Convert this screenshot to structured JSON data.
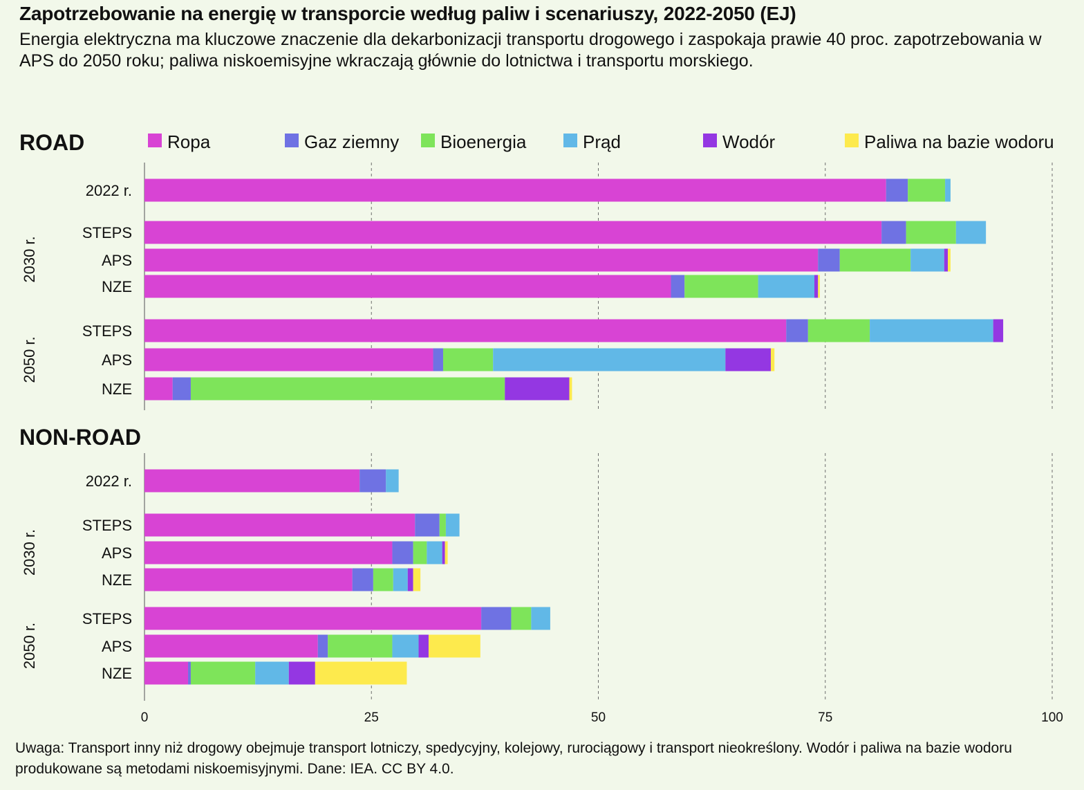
{
  "header": {
    "title": "Zapotrzebowanie na energię w transporcie według paliw i scenariuszy, 2022-2050 (EJ)",
    "subtitle": "Energia elektryczna ma kluczowe znaczenie dla dekarbonizacji transportu drogowego i zaspokaja prawie 40 proc. zapotrzebowania w APS do 2050 roku; paliwa niskoemisyjne wkraczają głównie do lotnictwa i transportu morskiego."
  },
  "footer": {
    "note": "Uwaga: Transport inny niż drogowy obejmuje transport lotniczy, spedycyjny, kolejowy, rurociągowy i transport nieokreślony. Wodór i paliwa na bazie wodoru produkowane są metodami niskoemisyjnymi. Dane: IEA. CC BY 4.0."
  },
  "chart_data": {
    "type": "bar",
    "orientation": "horizontal",
    "stacked": true,
    "unit": "EJ",
    "xlim": [
      0,
      100
    ],
    "x_ticks": [
      0,
      25,
      50,
      75,
      100
    ],
    "grid": "vertical dashed",
    "legend_position": "top",
    "series": [
      {
        "name": "Ropa",
        "color": "#d844d4"
      },
      {
        "name": "Gaz ziemny",
        "color": "#6f72e3"
      },
      {
        "name": "Bioenergia",
        "color": "#7ee45a"
      },
      {
        "name": "Prąd",
        "color": "#61b8e7"
      },
      {
        "name": "Wodór",
        "color": "#9437e2"
      },
      {
        "name": "Paliwa na bazie wodoru",
        "color": "#fdea4d"
      }
    ],
    "panels": [
      {
        "title": "ROAD",
        "groups": [
          {
            "label": "",
            "rows": [
              {
                "label": "2022 r.",
                "values": [
                  81.7,
                  2.4,
                  4.1,
                  0.6,
                  0,
                  0
                ]
              }
            ]
          },
          {
            "label": "2030 r.",
            "rows": [
              {
                "label": "STEPS",
                "values": [
                  81.2,
                  2.7,
                  5.5,
                  3.3,
                  0,
                  0
                ]
              },
              {
                "label": "APS",
                "values": [
                  74.2,
                  2.4,
                  7.8,
                  3.7,
                  0.4,
                  0.3
                ]
              },
              {
                "label": "NZE",
                "values": [
                  58.0,
                  1.5,
                  8.1,
                  6.2,
                  0.4,
                  0.2
                ]
              }
            ]
          },
          {
            "label": "2050 r.",
            "rows": [
              {
                "label": "STEPS",
                "values": [
                  70.7,
                  2.4,
                  6.8,
                  13.6,
                  1.1,
                  0
                ]
              },
              {
                "label": "APS",
                "values": [
                  31.8,
                  1.1,
                  5.5,
                  25.6,
                  5.0,
                  0.4
                ]
              },
              {
                "label": "NZE",
                "values": [
                  3.1,
                  2.0,
                  34.6,
                  0,
                  7.1,
                  0.3
                ]
              }
            ]
          }
        ]
      },
      {
        "title": "NON-ROAD",
        "groups": [
          {
            "label": "",
            "rows": [
              {
                "label": "2022 r.",
                "values": [
                  23.7,
                  2.9,
                  0,
                  1.4,
                  0,
                  0
                ]
              }
            ]
          },
          {
            "label": "2030 r.",
            "rows": [
              {
                "label": "STEPS",
                "values": [
                  29.8,
                  2.7,
                  0.7,
                  1.5,
                  0,
                  0
                ]
              },
              {
                "label": "APS",
                "values": [
                  27.3,
                  2.3,
                  1.5,
                  1.7,
                  0.3,
                  0.3
                ]
              },
              {
                "label": "NZE",
                "values": [
                  22.9,
                  2.3,
                  2.2,
                  1.6,
                  0.6,
                  0.8
                ]
              }
            ]
          },
          {
            "label": "2050 r.",
            "rows": [
              {
                "label": "STEPS",
                "values": [
                  37.1,
                  3.3,
                  2.2,
                  2.1,
                  0,
                  0
                ]
              },
              {
                "label": "APS",
                "values": [
                  19.1,
                  1.1,
                  7.1,
                  2.9,
                  1.1,
                  5.7
                ]
              },
              {
                "label": "NZE",
                "values": [
                  4.8,
                  0.3,
                  7.1,
                  3.7,
                  2.9,
                  10.1
                ]
              }
            ]
          }
        ]
      }
    ]
  }
}
